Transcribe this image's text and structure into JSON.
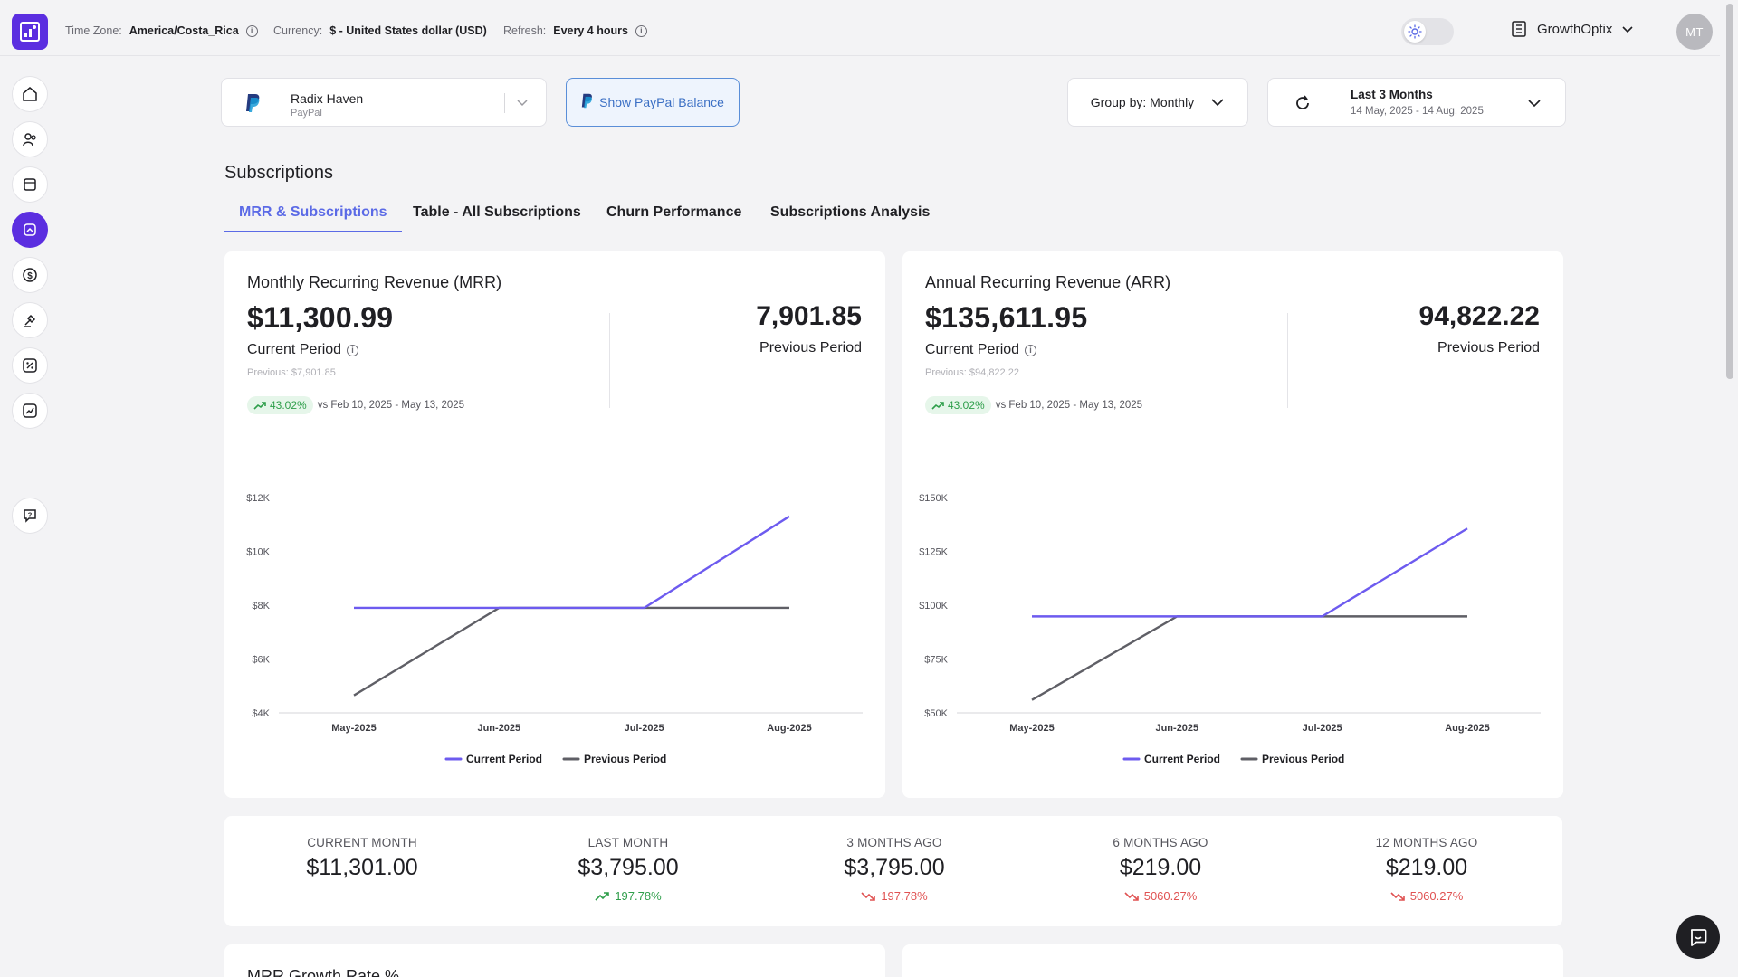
{
  "topbar": {
    "timezone_label": "Time Zone:",
    "timezone_value": "America/Costa_Rica",
    "currency_label": "Currency:",
    "currency_value": "$ - United States dollar (USD)",
    "refresh_label": "Refresh:",
    "refresh_value": "Every 4 hours",
    "workspace": "GrowthOptix",
    "avatar_initials": "MT"
  },
  "filters": {
    "account_name": "Radix Haven",
    "account_source": "PayPal",
    "balance_button": "Show PayPal Balance",
    "group_by": "Group by: Monthly",
    "date_range_label": "Last 3 Months",
    "date_range_dates": "14 May, 2025 - 14 Aug, 2025"
  },
  "page_title": "Subscriptions",
  "tabs": [
    {
      "label": "MRR & Subscriptions",
      "active": true
    },
    {
      "label": "Table - All Subscriptions",
      "active": false
    },
    {
      "label": "Churn Performance",
      "active": false
    },
    {
      "label": "Subscriptions Analysis",
      "active": false
    }
  ],
  "mrr": {
    "title": "Monthly Recurring Revenue (MRR)",
    "current_value": "$11,300.99",
    "current_label": "Current Period",
    "previous_small": "Previous: $7,901.85",
    "change": "43.02%",
    "compare_text": "vs Feb 10, 2025 - May 13, 2025",
    "previous_value": "7,901.85",
    "previous_label": "Previous Period"
  },
  "arr": {
    "title": "Annual Recurring Revenue (ARR)",
    "current_value": "$135,611.95",
    "current_label": "Current Period",
    "previous_small": "Previous: $94,822.22",
    "change": "43.02%",
    "compare_text": "vs Feb 10, 2025 - May 13, 2025",
    "previous_value": "94,822.22",
    "previous_label": "Previous Period"
  },
  "chart_data": [
    {
      "type": "line",
      "x": [
        "May-2025",
        "Jun-2025",
        "Jul-2025",
        "Aug-2025"
      ],
      "yticks": [
        "$4K",
        "$6K",
        "$8K",
        "$10K",
        "$12K"
      ],
      "ylim": [
        4000,
        12000
      ],
      "series": [
        {
          "name": "Current Period",
          "color": "#6d5bef",
          "values": [
            7900,
            7900,
            7900,
            11300
          ]
        },
        {
          "name": "Previous Period",
          "color": "#5f5f66",
          "values": [
            4650,
            7900,
            7900,
            7900
          ]
        }
      ],
      "legend": "bottom-center"
    },
    {
      "type": "line",
      "x": [
        "May-2025",
        "Jun-2025",
        "Jul-2025",
        "Aug-2025"
      ],
      "yticks": [
        "$50K",
        "$75K",
        "$100K",
        "$125K",
        "$150K"
      ],
      "ylim": [
        50000,
        150000
      ],
      "series": [
        {
          "name": "Current Period",
          "color": "#6d5bef",
          "values": [
            94800,
            94800,
            94800,
            135600
          ]
        },
        {
          "name": "Previous Period",
          "color": "#5f5f66",
          "values": [
            56000,
            94800,
            94800,
            94800
          ]
        }
      ],
      "legend": "bottom-center"
    }
  ],
  "summary": [
    {
      "label": "CURRENT MONTH",
      "value": "$11,301.00",
      "change": "",
      "direction": "none"
    },
    {
      "label": "LAST MONTH",
      "value": "$3,795.00",
      "change": "197.78%",
      "direction": "up"
    },
    {
      "label": "3 MONTHS AGO",
      "value": "$3,795.00",
      "change": "197.78%",
      "direction": "down"
    },
    {
      "label": "6 MONTHS AGO",
      "value": "$219.00",
      "change": "5060.27%",
      "direction": "down"
    },
    {
      "label": "12 MONTHS AGO",
      "value": "$219.00",
      "change": "5060.27%",
      "direction": "down"
    }
  ],
  "bottom_card_title": "MRR Growth Rate %",
  "colors": {
    "accent": "#5b2ee0",
    "tab_active": "#5b6ae6",
    "current_line": "#6d5bef",
    "previous_line": "#5f5f66",
    "up": "#2e9e4a",
    "down": "#e05252"
  }
}
